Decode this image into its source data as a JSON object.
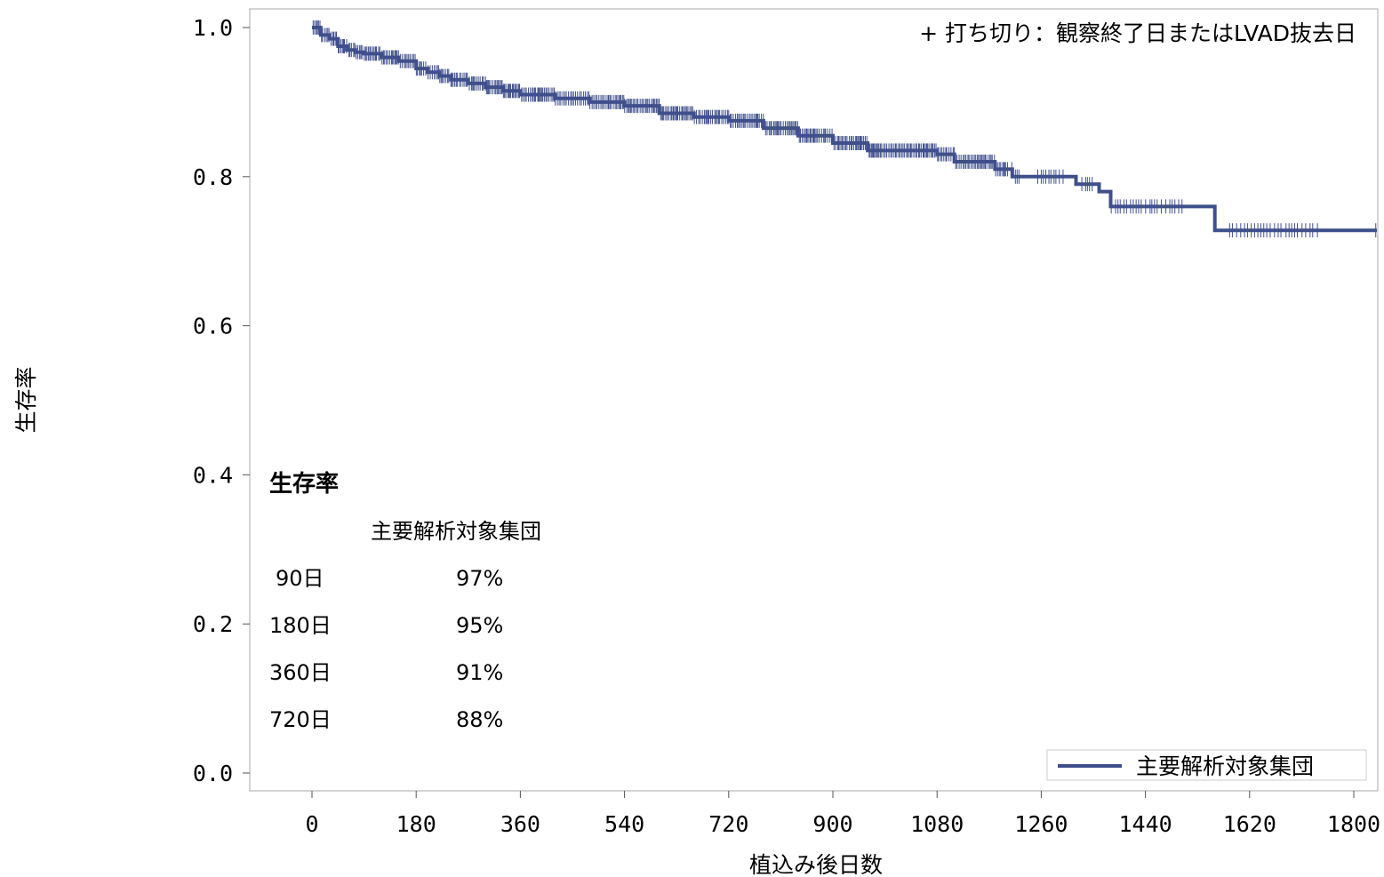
{
  "chart_data": {
    "type": "line",
    "step": true,
    "xlabel": "植込み後日数",
    "ylabel": "生存率",
    "xlim": [
      -90,
      1830
    ],
    "ylim": [
      -0.05,
      1.05
    ],
    "x_ticks": [
      0,
      180,
      360,
      540,
      720,
      900,
      1080,
      1260,
      1440,
      1620,
      1800
    ],
    "y_ticks": [
      "0.0",
      "0.2",
      "0.4",
      "0.6",
      "0.8",
      "1.0"
    ],
    "grid": false,
    "series": [
      {
        "name": "主要解析対象集団",
        "color": "#3f4f8c",
        "x": [
          0,
          15,
          30,
          45,
          60,
          75,
          90,
          120,
          150,
          180,
          200,
          220,
          240,
          270,
          300,
          330,
          360,
          420,
          480,
          540,
          600,
          660,
          720,
          780,
          840,
          900,
          960,
          1020,
          1080,
          1110,
          1180,
          1210,
          1320,
          1360,
          1380,
          1560,
          1840
        ],
        "y": [
          1.0,
          0.99,
          0.985,
          0.975,
          0.97,
          0.967,
          0.965,
          0.96,
          0.955,
          0.945,
          0.94,
          0.935,
          0.93,
          0.925,
          0.92,
          0.915,
          0.91,
          0.905,
          0.9,
          0.895,
          0.885,
          0.88,
          0.875,
          0.865,
          0.855,
          0.845,
          0.835,
          0.835,
          0.83,
          0.82,
          0.81,
          0.8,
          0.79,
          0.78,
          0.76,
          0.728,
          0.728
        ]
      }
    ],
    "censor_marks": {
      "symbol": "+",
      "note": "+ 打ち切り：観察終了日またはLVAD抜去日",
      "ranges": [
        [
          0,
          1500
        ],
        [
          1500,
          1840
        ]
      ]
    },
    "legend": {
      "position": "bottom-right",
      "entries": [
        "主要解析対象集団"
      ]
    },
    "inset_table": {
      "title": "生存率",
      "column_header": "主要解析対象集団",
      "rows": [
        {
          "label": "90日",
          "value": "97%"
        },
        {
          "label": "180日",
          "value": "95%"
        },
        {
          "label": "360日",
          "value": "91%"
        },
        {
          "label": "720日",
          "value": "88%"
        }
      ]
    }
  }
}
